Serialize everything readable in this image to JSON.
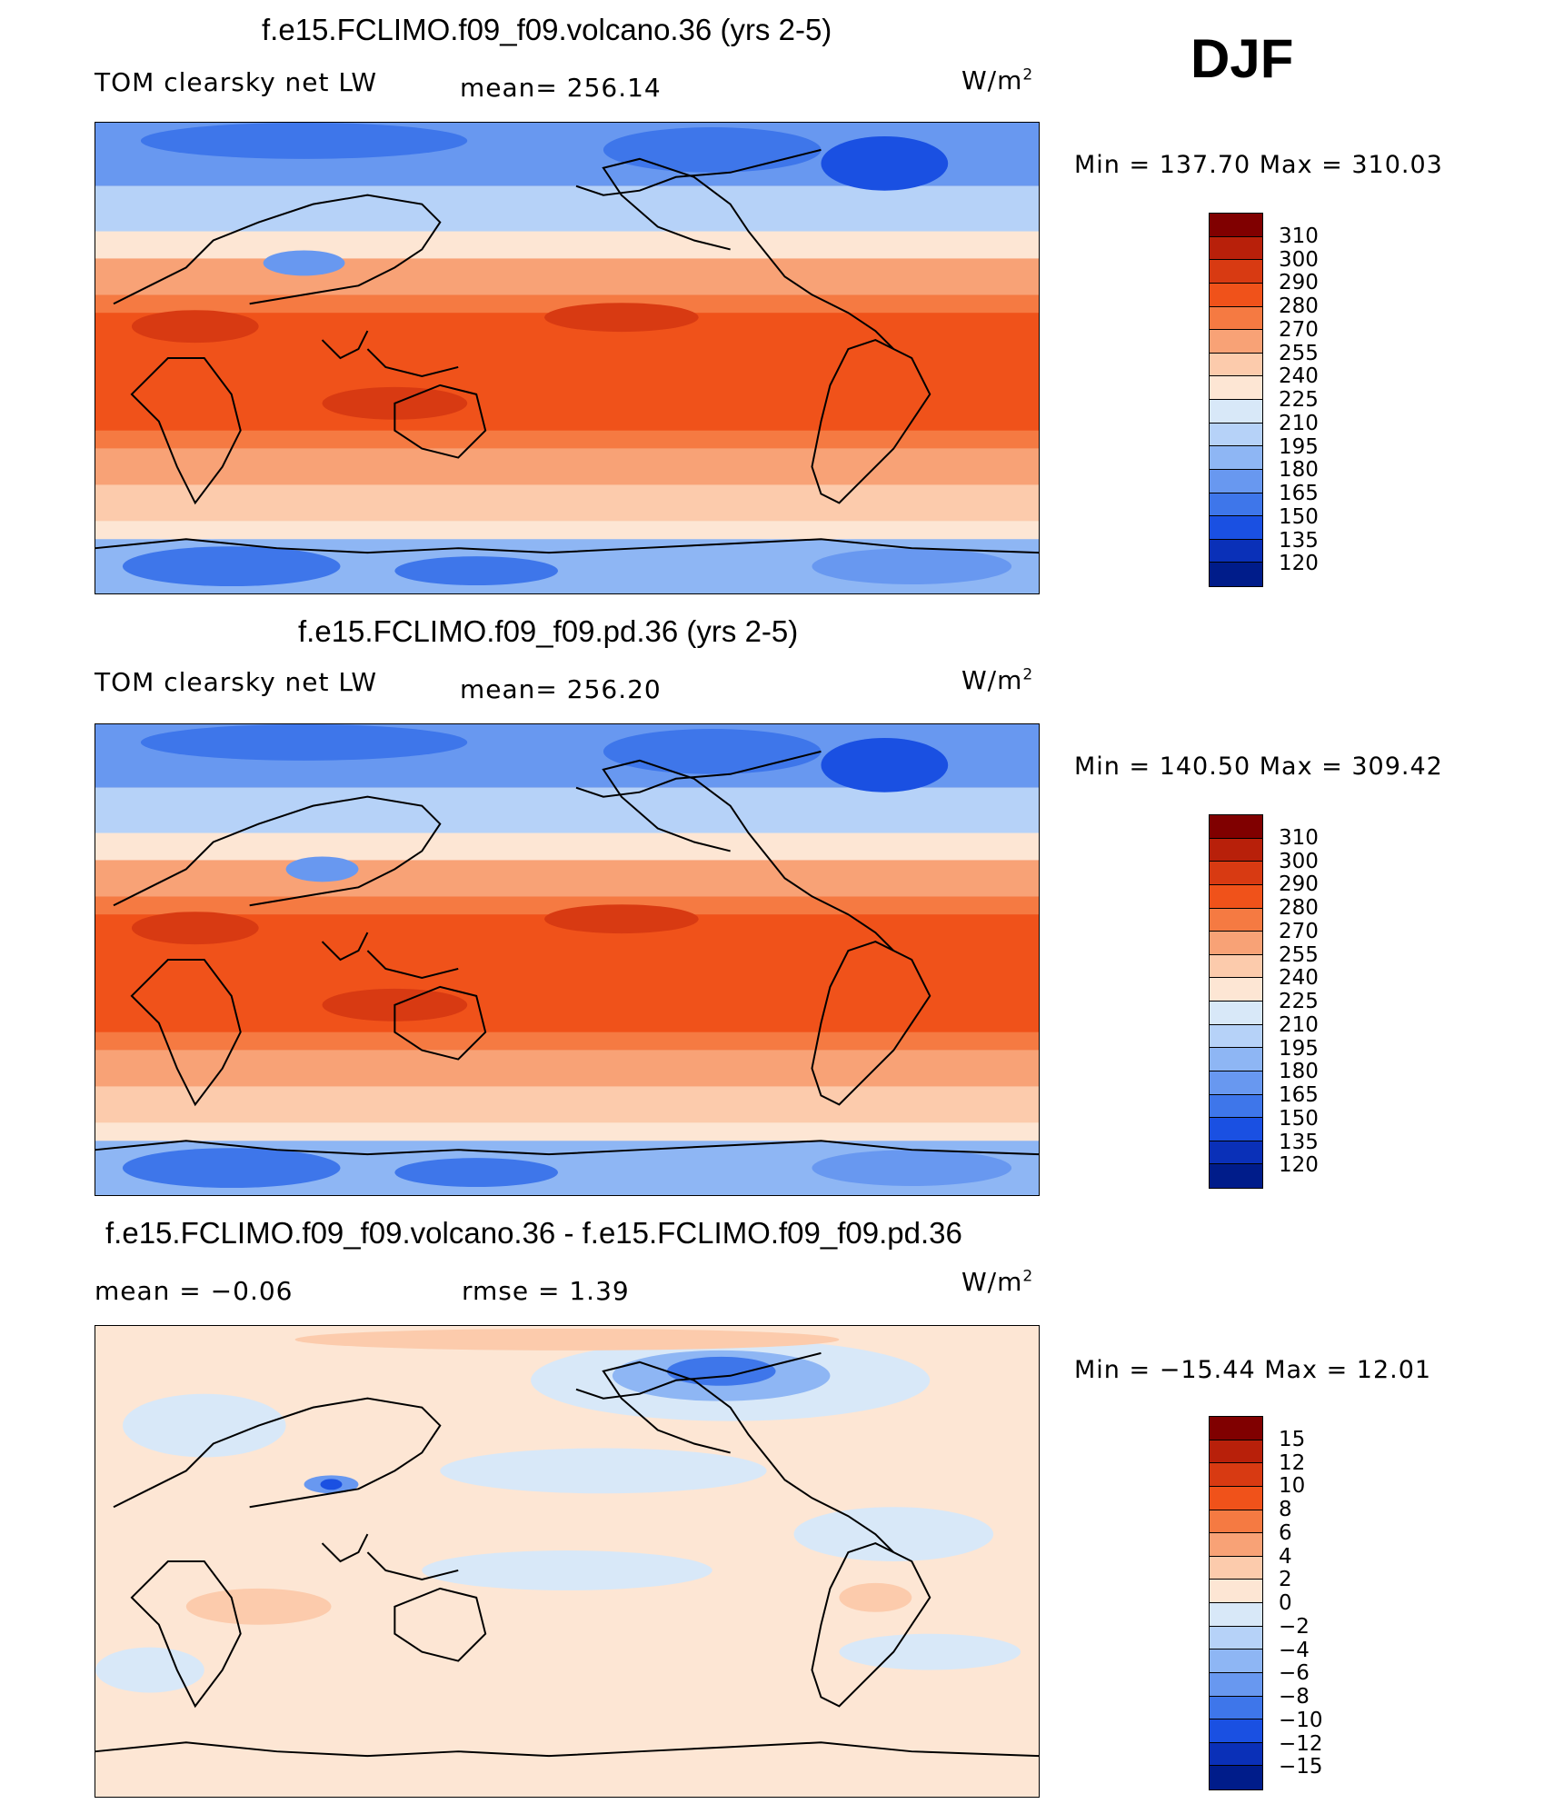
{
  "season": "DJF",
  "units_label": "W/m",
  "units_sup": "2",
  "panels": [
    {
      "title": "f.e15.FCLIMO.f09_f09.volcano.36 (yrs 2-5)",
      "variable": "TOM clearsky net LW",
      "stat": "mean= 256.14",
      "minmax": "Min = 137.70 Max = 310.03",
      "kind": "field"
    },
    {
      "title": "f.e15.FCLIMO.f09_f09.pd.36 (yrs 2-5)",
      "variable": "TOM clearsky net LW",
      "stat": "mean= 256.20",
      "minmax": "Min = 140.50 Max = 309.42",
      "kind": "field"
    },
    {
      "title": "f.e15.FCLIMO.f09_f09.volcano.36 - f.e15.FCLIMO.f09_f09.pd.36",
      "variable": "mean =   −0.06",
      "stat": "rmse =    1.39",
      "minmax": "Min = −15.44 Max =  12.01",
      "kind": "diff"
    }
  ],
  "colorbars": {
    "field": {
      "labels": [
        "310",
        "300",
        "290",
        "280",
        "270",
        "255",
        "240",
        "225",
        "210",
        "195",
        "180",
        "165",
        "150",
        "135",
        "120"
      ],
      "colors": [
        "#800000",
        "#b8200a",
        "#d83a12",
        "#f0521a",
        "#f57a42",
        "#f8a276",
        "#fccbac",
        "#fde6d4",
        "#d8e8f8",
        "#b6d2f8",
        "#8eb6f4",
        "#6898f0",
        "#3e76ea",
        "#1a50e2",
        "#0a30b8",
        "#001c8a"
      ]
    },
    "diff": {
      "labels": [
        "15",
        "12",
        "10",
        "8",
        "6",
        "4",
        "2",
        "0",
        "−2",
        "−4",
        "−6",
        "−8",
        "−10",
        "−12",
        "−15"
      ],
      "colors": [
        "#800000",
        "#b8200a",
        "#d83a12",
        "#f0521a",
        "#f57a42",
        "#f8a276",
        "#fccbac",
        "#fde6d4",
        "#d8e8f8",
        "#b6d2f8",
        "#8eb6f4",
        "#6898f0",
        "#3e76ea",
        "#1a50e2",
        "#0a30b8",
        "#001c8a"
      ]
    }
  }
}
